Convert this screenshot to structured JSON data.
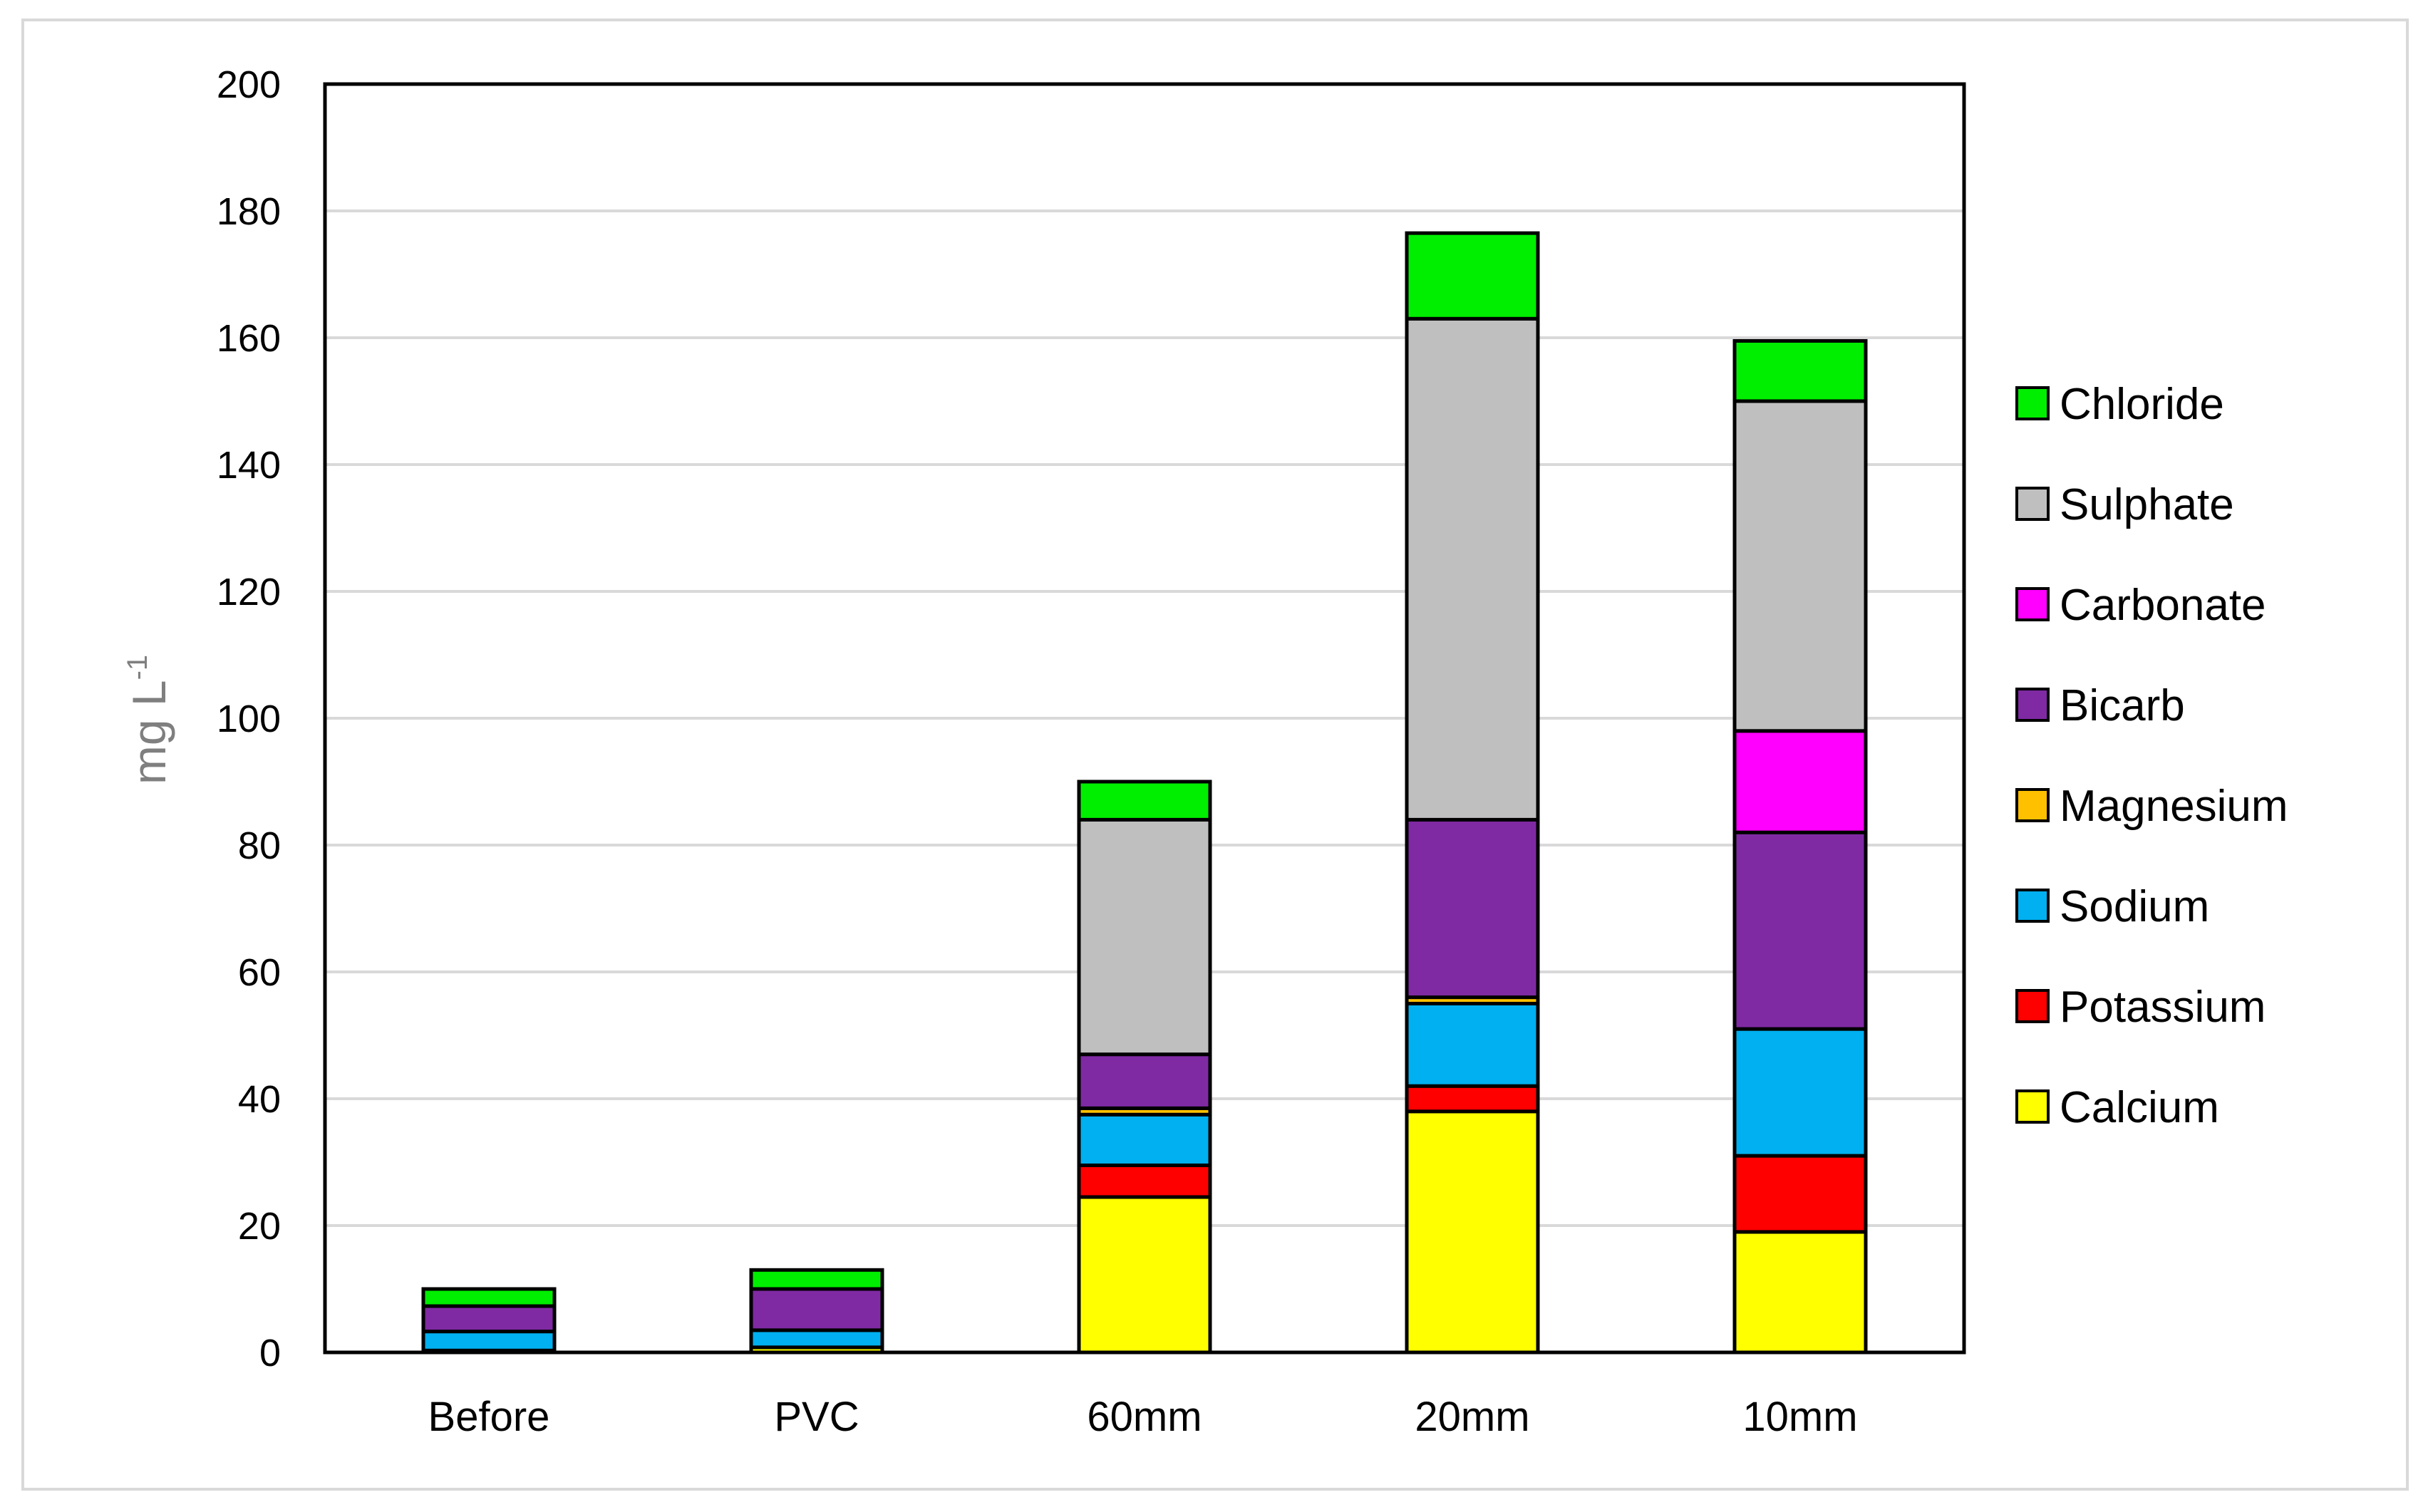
{
  "chart_data": {
    "type": "bar",
    "stacked": true,
    "categories": [
      "Before",
      "PVC",
      "60mm",
      "20mm",
      "10mm"
    ],
    "series": [
      {
        "name": "Calcium",
        "color": "#ffff00",
        "values": [
          0.3,
          0.8,
          24.5,
          38,
          19
        ]
      },
      {
        "name": "Potassium",
        "color": "#ff0000",
        "values": [
          0,
          0,
          5,
          4,
          12
        ]
      },
      {
        "name": "Sodium",
        "color": "#00b0f0",
        "values": [
          3,
          2.7,
          8,
          13,
          20
        ]
      },
      {
        "name": "Magnesium",
        "color": "#ffc000",
        "values": [
          0,
          0,
          1,
          1,
          0
        ]
      },
      {
        "name": "Bicarb",
        "color": "#7f2aa3",
        "values": [
          4,
          6.5,
          8.5,
          28,
          31
        ]
      },
      {
        "name": "Carbonate",
        "color": "#ff00ff",
        "values": [
          0,
          0,
          0,
          0,
          16
        ]
      },
      {
        "name": "Sulphate",
        "color": "#bfbfbf",
        "values": [
          0,
          0,
          37,
          79,
          52
        ]
      },
      {
        "name": "Chloride",
        "color": "#00ee00",
        "values": [
          2.7,
          3,
          6,
          13.5,
          9.5
        ]
      }
    ],
    "title": "",
    "xlabel": "",
    "ylabel": "mg L",
    "ylabel_superscript": "-1",
    "ylim": [
      0,
      200
    ],
    "yticks": [
      0,
      20,
      40,
      60,
      80,
      100,
      120,
      140,
      160,
      180,
      200
    ],
    "grid": true,
    "legend_position": "right",
    "legend_order": [
      "Chloride",
      "Sulphate",
      "Carbonate",
      "Bicarb",
      "Magnesium",
      "Sodium",
      "Potassium",
      "Calcium"
    ]
  }
}
